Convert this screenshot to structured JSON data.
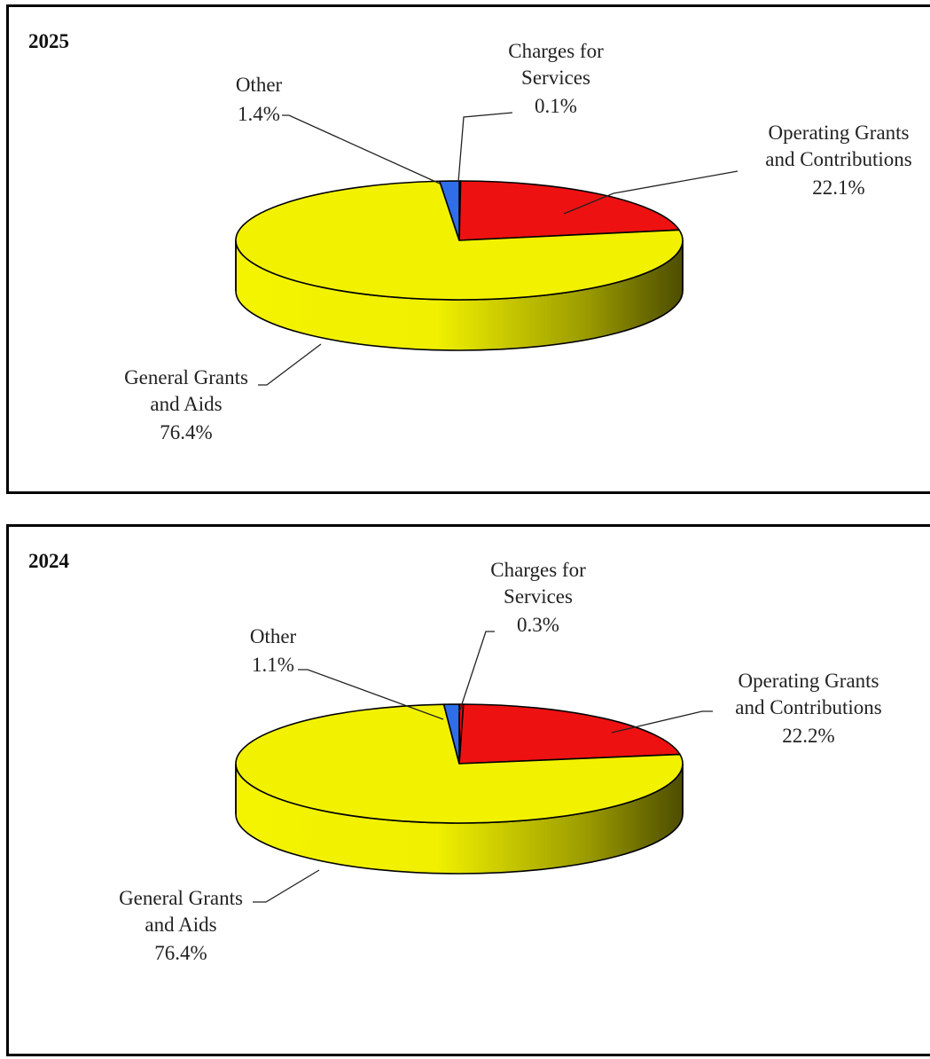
{
  "chart_data": [
    {
      "type": "pie",
      "title": "2025",
      "slices": [
        {
          "lines": [
            "Charges for",
            "Services"
          ],
          "pct_label": "0.1%",
          "value": 0.1,
          "color": "#ff0000"
        },
        {
          "lines": [
            "Operating Grants",
            "and Contributions"
          ],
          "pct_label": "22.1%",
          "value": 22.1,
          "color": "#ee1111"
        },
        {
          "lines": [
            "General Grants",
            "and Aids"
          ],
          "pct_label": "76.4%",
          "value": 76.4,
          "color": "#f2f200"
        },
        {
          "lines": [
            "Other"
          ],
          "pct_label": "1.4%",
          "value": 1.4,
          "color": "#2f6ee8"
        }
      ]
    },
    {
      "type": "pie",
      "title": "2024",
      "slices": [
        {
          "lines": [
            "Charges for",
            "Services"
          ],
          "pct_label": "0.3%",
          "value": 0.3,
          "color": "#ff0000"
        },
        {
          "lines": [
            "Operating Grants",
            "and Contributions"
          ],
          "pct_label": "22.2%",
          "value": 22.2,
          "color": "#ee1111"
        },
        {
          "lines": [
            "General Grants",
            "and Aids"
          ],
          "pct_label": "76.4%",
          "value": 76.4,
          "color": "#f2f200"
        },
        {
          "lines": [
            "Other"
          ],
          "pct_label": "1.1%",
          "value": 1.1,
          "color": "#2f6ee8"
        }
      ]
    }
  ]
}
